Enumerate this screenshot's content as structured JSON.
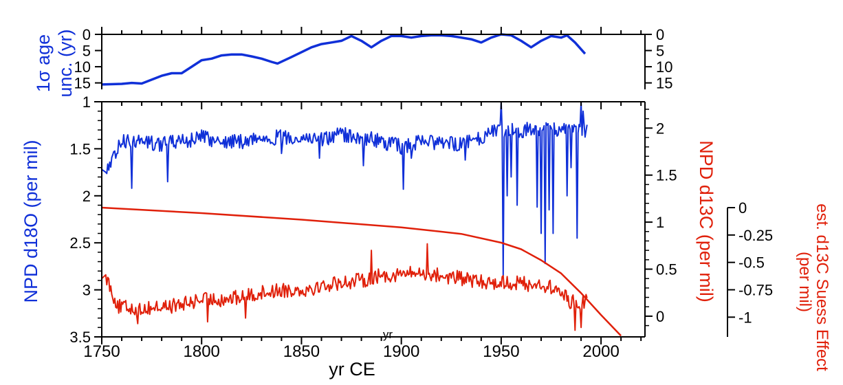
{
  "colors": {
    "blue": "#1030d8",
    "red": "#e0200a",
    "axis": "#000000"
  },
  "chart_data": [
    {
      "panel": "top",
      "type": "line",
      "ylabel_line1": "1σ age",
      "ylabel_line2": "unc. (yr)",
      "ylim": [
        17,
        0
      ],
      "yticks_left": [
        "0",
        "5",
        "10",
        "15"
      ],
      "yticks_right": [
        "0",
        "5",
        "10",
        "15"
      ],
      "series": [
        {
          "color": "blue",
          "x": [
            1750,
            1760,
            1765,
            1770,
            1775,
            1780,
            1785,
            1790,
            1795,
            1800,
            1805,
            1810,
            1815,
            1820,
            1825,
            1830,
            1835,
            1838,
            1845,
            1850,
            1855,
            1860,
            1865,
            1870,
            1875,
            1880,
            1885,
            1890,
            1895,
            1900,
            1905,
            1910,
            1915,
            1920,
            1925,
            1930,
            1935,
            1940,
            1945,
            1950,
            1955,
            1960,
            1965,
            1970,
            1975,
            1980,
            1983,
            1987,
            1992
          ],
          "y": [
            15.5,
            15.3,
            15.0,
            15.2,
            14.0,
            12.8,
            12.0,
            12.0,
            10.0,
            8.0,
            7.5,
            6.5,
            6.2,
            6.2,
            6.8,
            7.5,
            8.5,
            9.0,
            7.0,
            5.5,
            4.0,
            3.0,
            2.5,
            2.0,
            0.5,
            2.0,
            4.0,
            2.0,
            0.5,
            0.5,
            1.0,
            0.5,
            0.3,
            0.3,
            0.5,
            1.0,
            1.5,
            2.5,
            1.0,
            0.0,
            0.3,
            2.0,
            4.0,
            2.0,
            0.5,
            1.0,
            0.3,
            2.5,
            6.0
          ]
        }
      ]
    },
    {
      "panel": "main",
      "type": "line",
      "xlabel": "yr CE",
      "x_overlap_label": "yr",
      "xlim": [
        1750,
        2022
      ],
      "xticks": [
        "1750",
        "1800",
        "1850",
        "1900",
        "1950",
        "2000"
      ],
      "ylabel_left": "NPD d18O (per mil)",
      "ylim_left": [
        3.5,
        1.0
      ],
      "yticks_left": [
        "1",
        "1.5",
        "2",
        "2.5",
        "3",
        "3.5"
      ],
      "ylabel_right": "NPD d13C (per mil)",
      "ylim_right": [
        -0.22,
        2.28
      ],
      "yticks_right": [
        "0",
        "0.5",
        "1",
        "1.5",
        "2"
      ],
      "ylabel_suess": "est. d13C Suess Effect",
      "ylabel_suess_unit": "(per mil)",
      "ylim_suess": [
        -1.18,
        0.0
      ],
      "yticks_suess": [
        "0",
        "-0.25",
        "-0.5",
        "-0.75",
        "-1"
      ],
      "series": [
        {
          "color": "blue",
          "axis": "left",
          "start": 1750,
          "step": 0.5,
          "anchors_x": [
            1750,
            1752,
            1758,
            1760,
            1770,
            1780,
            1790,
            1800,
            1810,
            1820,
            1830,
            1840,
            1850,
            1860,
            1870,
            1880,
            1890,
            1900,
            1910,
            1920,
            1930,
            1940,
            1945,
            1948,
            1993
          ],
          "anchors_y": [
            1.72,
            1.75,
            1.5,
            1.42,
            1.42,
            1.45,
            1.42,
            1.38,
            1.42,
            1.42,
            1.38,
            1.38,
            1.38,
            1.4,
            1.35,
            1.38,
            1.42,
            1.48,
            1.42,
            1.45,
            1.45,
            1.38,
            1.3,
            1.3,
            1.3
          ],
          "amp": 0.08,
          "dips": [
            [
              1757,
              1.6
            ],
            [
              1765,
              1.92
            ],
            [
              1783,
              1.85
            ],
            [
              1840,
              1.55
            ],
            [
              1859,
              1.6
            ],
            [
              1881,
              1.68
            ],
            [
              1901,
              1.93
            ],
            [
              1905,
              1.6
            ],
            [
              1932,
              1.62
            ],
            [
              1951,
              2.85
            ],
            [
              1953,
              2.0
            ],
            [
              1955,
              1.8
            ],
            [
              1958,
              2.1
            ],
            [
              1963,
              1.6
            ],
            [
              1968,
              2.12
            ],
            [
              1970,
              2.4
            ],
            [
              1972,
              2.72
            ],
            [
              1974,
              2.15
            ],
            [
              1976,
              2.4
            ],
            [
              1980,
              2.8
            ],
            [
              1983,
              2.0
            ],
            [
              1985,
              1.7
            ],
            [
              1988,
              2.45
            ]
          ],
          "peaks": [
            [
              1950,
              1.0
            ],
            [
              1963,
              1.22
            ],
            [
              1980,
              1.32
            ],
            [
              1990,
              1.0
            ],
            [
              1991,
              1.1
            ]
          ]
        },
        {
          "color": "red",
          "axis": "right",
          "start": 1750,
          "step": 0.5,
          "anchors_x": [
            1750,
            1752,
            1758,
            1770,
            1780,
            1790,
            1800,
            1810,
            1820,
            1830,
            1840,
            1850,
            1860,
            1870,
            1880,
            1890,
            1900,
            1910,
            1920,
            1930,
            1940,
            1950,
            1960,
            1970,
            1975,
            1980,
            1985,
            1993
          ],
          "anchors_y": [
            0.4,
            0.44,
            0.1,
            0.08,
            0.1,
            0.12,
            0.18,
            0.18,
            0.2,
            0.25,
            0.28,
            0.28,
            0.32,
            0.36,
            0.38,
            0.43,
            0.45,
            0.46,
            0.43,
            0.4,
            0.36,
            0.36,
            0.35,
            0.33,
            0.3,
            0.25,
            0.15,
            0.15
          ],
          "amp": 0.08,
          "dips": [
            [
              1768,
              -0.08
            ],
            [
              1803,
              -0.06
            ],
            [
              1822,
              -0.02
            ],
            [
              1987,
              -0.15
            ],
            [
              1990,
              -0.12
            ]
          ],
          "peaks": [
            [
              1885,
              0.7
            ],
            [
              1913,
              0.77
            ]
          ]
        },
        {
          "color": "red",
          "axis": "suess",
          "type": "smooth",
          "x": [
            1750,
            1800,
            1850,
            1900,
            1930,
            1950,
            1960,
            1970,
            1980,
            1990,
            2000,
            2010
          ],
          "y": [
            0.0,
            -0.05,
            -0.11,
            -0.18,
            -0.24,
            -0.32,
            -0.38,
            -0.48,
            -0.6,
            -0.78,
            -0.98,
            -1.17
          ]
        }
      ]
    }
  ]
}
